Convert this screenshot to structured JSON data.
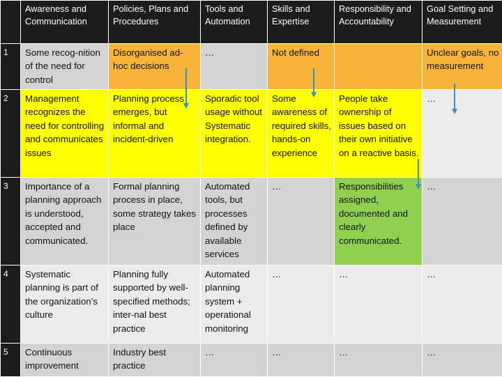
{
  "header": [
    "",
    "Awareness and Communication",
    "Policies, Plans and Procedures",
    "Tools and Automation",
    "Skills and Expertise",
    "Responsibility and Accountability",
    "Goal Setting and Measurement"
  ],
  "rows": [
    {
      "num": "1",
      "cells": [
        "Some recog-nition of the need for control",
        "Disorganised ad-hoc decisions",
        "…",
        "Not defined",
        "",
        "Unclear goals, no measurement"
      ]
    },
    {
      "num": "2",
      "cells": [
        "Management recognizes the need for controlling and communicates issues",
        "Planning process emerges, but informal and incident-driven",
        "Sporadic tool usage without Systematic integration.",
        "Some awareness of required skills, hands-on experience",
        "People take ownership of issues based on their own initiative on a reactive basis.",
        "…"
      ]
    },
    {
      "num": "3",
      "cells": [
        "Importance of a planning approach is understood, accepted and communicated.",
        "Formal planning process in place, some strategy takes place",
        "Automated tools, but processes defined by available services",
        "…",
        "Responsibilities assigned, documented and clearly communicated.",
        "…"
      ]
    },
    {
      "num": "4",
      "cells": [
        "Systematic planning is part of the organization’s culture",
        "Planning fully supported by well-specified methods; inter-nal best practice",
        "Automated planning system + operational monitoring",
        "…",
        "…",
        "…"
      ]
    },
    {
      "num": "5",
      "cells": [
        "Continuous improvement",
        "Industry best practice",
        "…",
        "…",
        "…",
        "…"
      ]
    }
  ],
  "colors": {
    "yellow": "#ffff00",
    "orange": "#f8b43a",
    "green": "#8fd14f",
    "arrow": "#3a8fd0"
  }
}
